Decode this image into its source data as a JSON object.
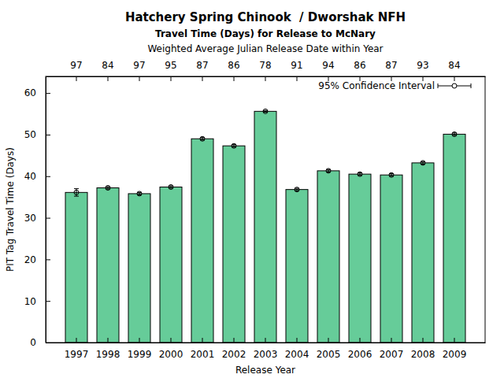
{
  "chart_data": {
    "type": "bar",
    "title": "Hatchery Spring Chinook  / Dworshak NFH",
    "subtitle": "Travel Time (Days) for Release to McNary",
    "top_axis_label": "Weighted Average Julian Release Date within Year",
    "categories": [
      "1997",
      "1998",
      "1999",
      "2000",
      "2001",
      "2002",
      "2003",
      "2004",
      "2005",
      "2006",
      "2007",
      "2008",
      "2009"
    ],
    "values": [
      36.1,
      37.2,
      35.8,
      37.4,
      49.0,
      47.3,
      55.6,
      36.8,
      41.3,
      40.5,
      40.3,
      43.2,
      50.1
    ],
    "errors": [
      0.9,
      0.3,
      0.3,
      0.3,
      0.3,
      0.3,
      0.2,
      0.3,
      0.3,
      0.3,
      0.3,
      0.3,
      0.3
    ],
    "release_dates": [
      97,
      84,
      97,
      95,
      87,
      86,
      78,
      91,
      94,
      86,
      87,
      93,
      84
    ],
    "error_label": "95% Confidence Interval",
    "x_label": "Release Year",
    "y_label": "PIT Tag Travel Time (Days)",
    "color": "#66cc99",
    "ylim": [
      0,
      64
    ],
    "yticks": [
      0,
      10,
      20,
      30,
      40,
      50,
      60
    ]
  }
}
